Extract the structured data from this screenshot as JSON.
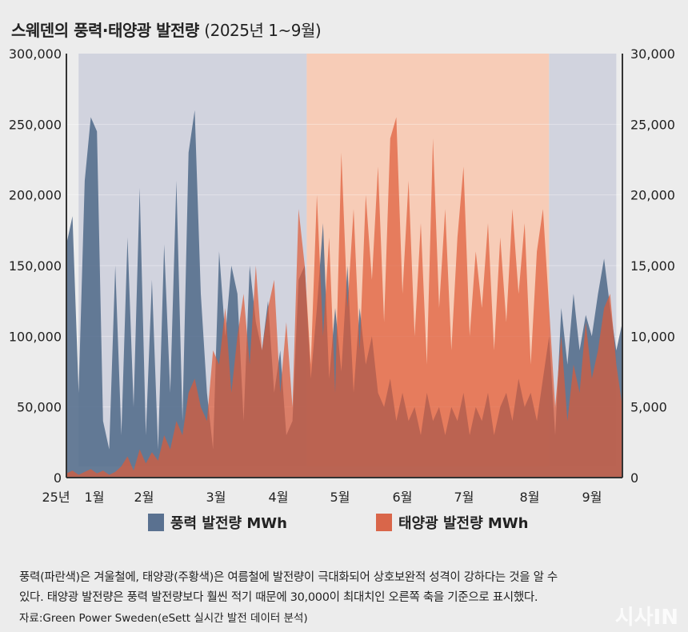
{
  "title": "스웨덴의 풍력·태양광 발전량",
  "title_sub": "(2025년 1~9월)",
  "legend": [
    {
      "label": "풍력 발전량 MWh",
      "color": "#5a7190"
    },
    {
      "label": "태양광 발전량 MWh",
      "color": "#d9664a"
    }
  ],
  "note_line1": "풍력(파란색)은 겨울철에, 태양광(주황색)은 여름철에 발전량이 극대화되어 상호보완적 성격이 강하다는 것을 알 수",
  "note_line2": "있다. 태양광 발전량은 풍력 발전량보다 훨씬 적기 때문에 30,000이 최대치인 오른쪽 축을 기준으로 표시했다.",
  "source": "자료:Green Power Sweden(eSett 실시간 발전 데이터 분석)",
  "watermark": "시사IN",
  "chart_data": {
    "type": "area",
    "title": "스웨덴의 풍력·태양광 발전량 (2025년 1~9월)",
    "x_ticks": [
      "25년",
      "1월",
      "2월",
      "3월",
      "4월",
      "5월",
      "6월",
      "7월",
      "8월",
      "9월"
    ],
    "left_axis": {
      "label": "풍력 발전량 MWh",
      "ylim": [
        0,
        300000
      ],
      "ticks": [
        "0",
        "50,000",
        "100,000",
        "150,000",
        "200,000",
        "250,000",
        "300,000"
      ]
    },
    "right_axis": {
      "label": "태양광 발전량 MWh",
      "ylim": [
        0,
        30000
      ],
      "ticks": [
        "0",
        "5,000",
        "10,000",
        "15,000",
        "20,000",
        "25,000",
        "30,000"
      ]
    },
    "x_range_days": [
      0,
      273
    ],
    "shaded_periods": [
      {
        "season": "winter",
        "from_day": 6,
        "to_day": 118,
        "color": "#d1d3de"
      },
      {
        "season": "summer",
        "from_day": 118,
        "to_day": 237,
        "color": "#f7ccb7"
      },
      {
        "season": "winter",
        "from_day": 237,
        "to_day": 270,
        "color": "#d1d3de"
      }
    ],
    "series": [
      {
        "name": "풍력 발전량 MWh",
        "axis": "left",
        "step_days": 3,
        "values": [
          165000,
          185000,
          60000,
          210000,
          255000,
          245000,
          40000,
          20000,
          150000,
          30000,
          170000,
          50000,
          205000,
          30000,
          140000,
          20000,
          165000,
          60000,
          210000,
          40000,
          230000,
          260000,
          130000,
          60000,
          20000,
          160000,
          100000,
          150000,
          130000,
          40000,
          150000,
          110000,
          90000,
          125000,
          60000,
          90000,
          30000,
          40000,
          140000,
          150000,
          70000,
          120000,
          180000,
          70000,
          120000,
          75000,
          150000,
          60000,
          120000,
          80000,
          100000,
          60000,
          50000,
          70000,
          40000,
          60000,
          40000,
          50000,
          30000,
          60000,
          40000,
          50000,
          30000,
          50000,
          40000,
          60000,
          30000,
          50000,
          40000,
          60000,
          30000,
          50000,
          60000,
          40000,
          70000,
          50000,
          60000,
          40000,
          70000,
          100000,
          30000,
          120000,
          80000,
          130000,
          90000,
          115000,
          100000,
          130000,
          155000,
          120000,
          90000,
          110000
        ]
      },
      {
        "name": "태양광 발전량 MWh",
        "axis": "right",
        "step_days": 3,
        "values": [
          300,
          500,
          200,
          400,
          600,
          300,
          500,
          200,
          400,
          800,
          1500,
          500,
          2000,
          1000,
          1800,
          1200,
          3000,
          2000,
          4000,
          3000,
          6000,
          7000,
          5000,
          4000,
          9000,
          8000,
          12000,
          6000,
          10000,
          13000,
          8000,
          15000,
          9000,
          12000,
          14000,
          6000,
          11000,
          5000,
          19000,
          15000,
          8000,
          20000,
          10000,
          17000,
          6000,
          23000,
          12000,
          19000,
          9000,
          20000,
          14000,
          22000,
          11000,
          24000,
          25500,
          13000,
          21000,
          10000,
          18000,
          8000,
          24000,
          12000,
          19000,
          9000,
          17000,
          22000,
          10000,
          16000,
          12000,
          18000,
          9000,
          17000,
          11000,
          19000,
          13000,
          18000,
          8000,
          16000,
          19000,
          12000,
          5000,
          10000,
          4000,
          8000,
          6000,
          11000,
          7000,
          9000,
          12000,
          13000,
          8000,
          5000
        ]
      }
    ]
  }
}
